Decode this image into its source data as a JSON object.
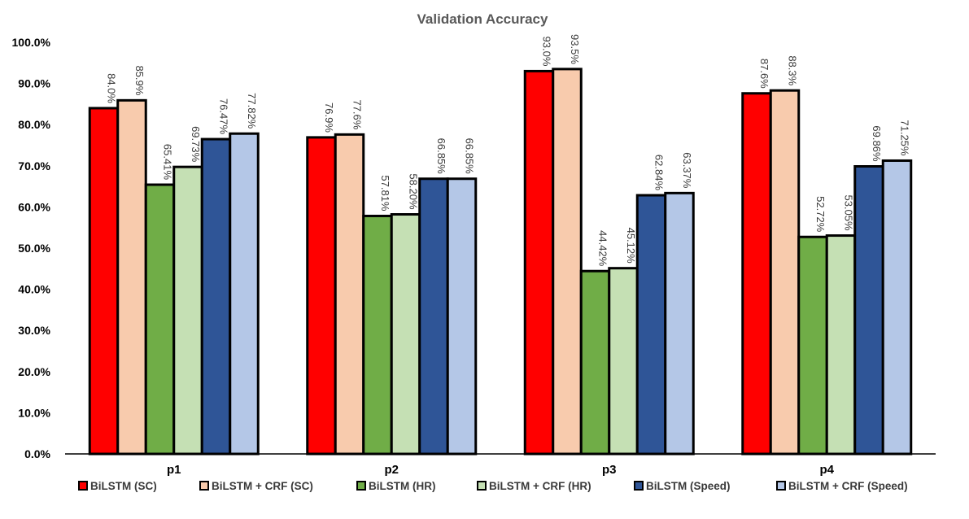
{
  "chart_data": {
    "type": "bar",
    "title": "Validation Accuracy",
    "xlabel": "",
    "ylabel": "",
    "ylim": [
      0,
      100
    ],
    "yticks": [
      "0.0%",
      "10.0%",
      "20.0%",
      "30.0%",
      "40.0%",
      "50.0%",
      "60.0%",
      "70.0%",
      "80.0%",
      "90.0%",
      "100.0%"
    ],
    "grid": false,
    "legend_position": "bottom",
    "categories": [
      "p1",
      "p2",
      "p3",
      "p4"
    ],
    "series": [
      {
        "name": "BiLSTM (SC)",
        "color": "#ff0000",
        "values": [
          84.0,
          76.9,
          93.0,
          87.6
        ],
        "labels": [
          "84.0%",
          "76.9%",
          "93.0%",
          "87.6%"
        ]
      },
      {
        "name": "BiLSTM + CRF (SC)",
        "color": "#f8cbad",
        "values": [
          85.9,
          77.6,
          93.5,
          88.3
        ],
        "labels": [
          "85.9%",
          "77.6%",
          "93.5%",
          "88.3%"
        ]
      },
      {
        "name": "BiLSTM (HR)",
        "color": "#70ad47",
        "values": [
          65.41,
          57.81,
          44.42,
          52.72
        ],
        "labels": [
          "65.41%",
          "57.81%",
          "44.42%",
          "52.72%"
        ]
      },
      {
        "name": "BiLSTM + CRF (HR)",
        "color": "#c5e0b4",
        "values": [
          69.73,
          58.2,
          45.12,
          53.05
        ],
        "labels": [
          "69.73%",
          "58.20%",
          "45.12%",
          "53.05%"
        ]
      },
      {
        "name": "BiLSTM (Speed)",
        "color": "#2f5597",
        "values": [
          76.47,
          66.85,
          62.84,
          69.86
        ],
        "labels": [
          "76.47%",
          "66.85%",
          "62.84%",
          "69.86%"
        ]
      },
      {
        "name": "BiLSTM + CRF (Speed)",
        "color": "#b4c7e7",
        "values": [
          77.82,
          66.85,
          63.37,
          71.25
        ],
        "labels": [
          "77.82%",
          "66.85%",
          "63.37%",
          "71.25%"
        ]
      }
    ]
  }
}
